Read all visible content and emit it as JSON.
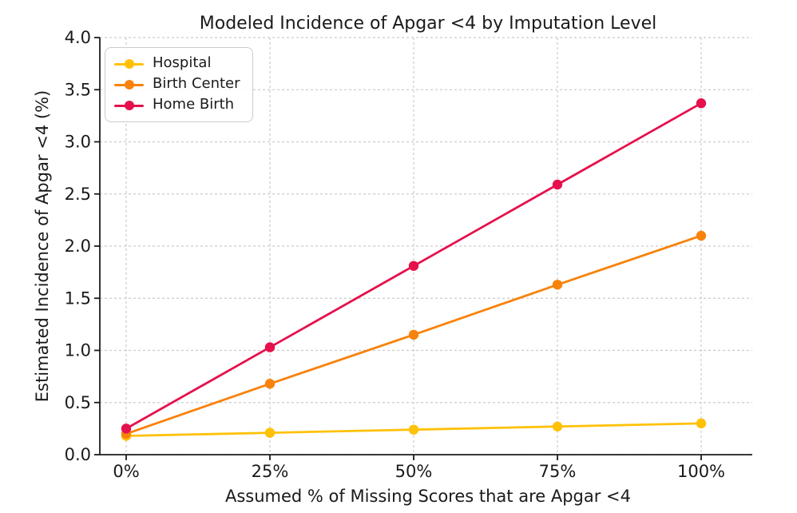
{
  "chart_data": {
    "type": "line",
    "title": "Modeled Incidence of Apgar <4 by Imputation Level",
    "xlabel": "Assumed % of Missing Scores that are Apgar <4",
    "ylabel": "Estimated Incidence of Apgar <4 (%)",
    "x": [
      0,
      25,
      50,
      75,
      100
    ],
    "x_tick_labels": [
      "0%",
      "25%",
      "50%",
      "75%",
      "100%"
    ],
    "xlim": [
      0,
      100
    ],
    "y_ticks": [
      0,
      0.5,
      1,
      1.5,
      2,
      2.5,
      3,
      3.5,
      4
    ],
    "y_tick_labels": [
      "0.0",
      "0.5",
      "1.0",
      "1.5",
      "2.0",
      "2.5",
      "3.0",
      "3.5",
      "4.0"
    ],
    "ylim": [
      0,
      4
    ],
    "grid": true,
    "grid_style": "dashed",
    "legend_position": "upper-left",
    "series": [
      {
        "name": "Hospital",
        "color": "#FFC107",
        "marker": "circle",
        "values": [
          0.18,
          0.21,
          0.24,
          0.27,
          0.3
        ]
      },
      {
        "name": "Birth Center",
        "color": "#F8820B",
        "marker": "circle",
        "values": [
          0.2,
          0.68,
          1.15,
          1.63,
          2.1
        ]
      },
      {
        "name": "Home Birth",
        "color": "#E5104C",
        "marker": "circle",
        "values": [
          0.25,
          1.03,
          1.81,
          2.59,
          3.37
        ]
      }
    ]
  },
  "style_colors": {
    "spine": "#1c1c1c",
    "grid": "#cccccc",
    "text": "#1a1a1a",
    "legend_border": "#cccccc"
  }
}
